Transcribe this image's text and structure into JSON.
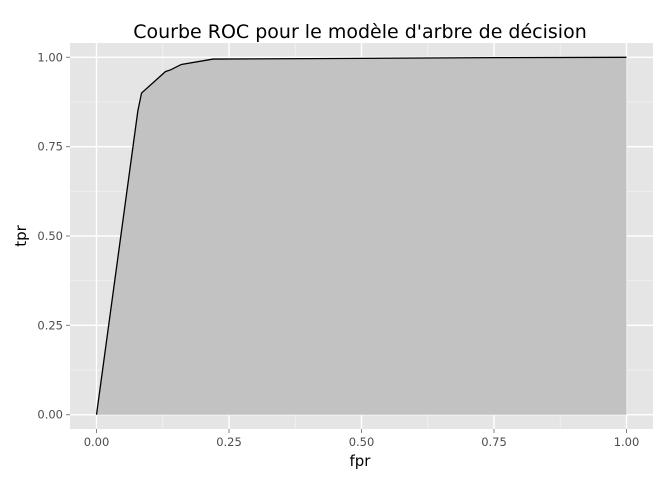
{
  "chart_data": {
    "type": "area",
    "title": "Courbe ROC pour le modèle d'arbre de décision",
    "xlabel": "fpr",
    "ylabel": "tpr",
    "xlim": [
      -0.05,
      1.05
    ],
    "ylim": [
      -0.04,
      1.04
    ],
    "xticks": [
      0.0,
      0.25,
      0.5,
      0.75,
      1.0
    ],
    "xtick_labels": [
      "0.00",
      "0.25",
      "0.50",
      "0.75",
      "1.00"
    ],
    "yticks": [
      0.0,
      0.25,
      0.5,
      0.75,
      1.0
    ],
    "ytick_labels": [
      "0.00",
      "0.25",
      "0.50",
      "0.75",
      "1.00"
    ],
    "grid": true,
    "legend": "none",
    "series": [
      {
        "x": [
          0.0,
          0.078,
          0.085,
          0.13,
          0.14,
          0.16,
          0.22,
          0.5,
          0.75,
          1.0
        ],
        "y": [
          0.0,
          0.85,
          0.9,
          0.96,
          0.965,
          0.98,
          0.995,
          0.997,
          0.999,
          1.0
        ]
      }
    ],
    "colors": {
      "panel_background": "#e5e5e5",
      "grid_major": "#ffffff",
      "grid_minor": "#f2f2f2",
      "area_fill": "#c2c2c2",
      "line": "#000000",
      "tick_text": "#4d4d4d"
    }
  }
}
